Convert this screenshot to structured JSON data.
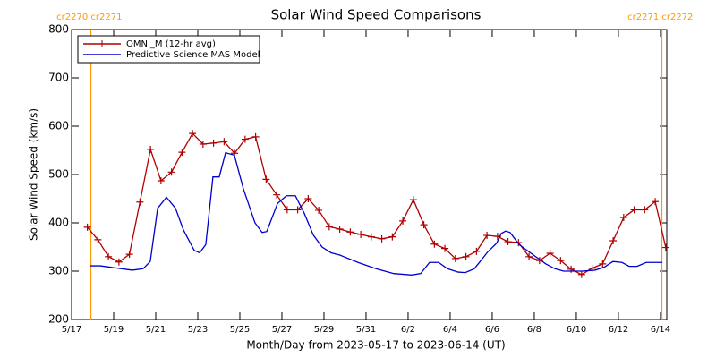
{
  "chart_data": {
    "type": "line",
    "title": "Solar Wind Speed Comparisons",
    "x_label": "Month/Day from 2023-05-17 to 2023-06-14 (UT)",
    "y_label": "Solar Wind Speed (km/s)",
    "xlim": [
      0,
      28.3
    ],
    "ylim": [
      200,
      800
    ],
    "xticks": [
      {
        "value": 0,
        "label": "5/17"
      },
      {
        "value": 2,
        "label": "5/19"
      },
      {
        "value": 4,
        "label": "5/21"
      },
      {
        "value": 6,
        "label": "5/23"
      },
      {
        "value": 8,
        "label": "5/25"
      },
      {
        "value": 10,
        "label": "5/27"
      },
      {
        "value": 12,
        "label": "5/29"
      },
      {
        "value": 14,
        "label": "5/31"
      },
      {
        "value": 16,
        "label": "6/2"
      },
      {
        "value": 18,
        "label": "6/4"
      },
      {
        "value": 20,
        "label": "6/6"
      },
      {
        "value": 22,
        "label": "6/8"
      },
      {
        "value": 24,
        "label": "6/10"
      },
      {
        "value": 26,
        "label": "6/12"
      },
      {
        "value": 28,
        "label": "6/14"
      }
    ],
    "yticks": [
      200,
      300,
      400,
      500,
      600,
      700,
      800
    ],
    "legend": "upper left",
    "annotations": [
      {
        "text": "cr2270 cr2271",
        "x": 0.9,
        "color": "#ff9900"
      },
      {
        "text": "cr2271 cr2272",
        "x": 28.05,
        "color": "#ff9900"
      }
    ],
    "series": [
      {
        "name": "OMNI_M (12-hr avg)",
        "color": "#b00000",
        "marker": "plus",
        "x": [
          0.75,
          1.25,
          1.75,
          2.25,
          2.75,
          3.25,
          3.75,
          4.25,
          4.75,
          5.25,
          5.75,
          6.25,
          6.75,
          7.25,
          7.75,
          8.25,
          8.75,
          9.25,
          9.75,
          10.25,
          10.75,
          11.25,
          11.75,
          12.25,
          12.75,
          13.25,
          13.75,
          14.25,
          14.75,
          15.25,
          15.75,
          16.25,
          16.75,
          17.25,
          17.75,
          18.25,
          18.75,
          19.25,
          19.75,
          20.25,
          20.75,
          21.25,
          21.75,
          22.25,
          22.75,
          23.25,
          23.75,
          24.25,
          24.75,
          25.25,
          25.75,
          26.25,
          26.75,
          27.25,
          27.75,
          28.25
        ],
        "values": [
          391,
          365,
          330,
          319,
          335,
          443,
          552,
          487,
          505,
          546,
          585,
          563,
          565,
          568,
          544,
          573,
          578,
          490,
          458,
          427,
          427,
          450,
          426,
          392,
          387,
          381,
          376,
          371,
          367,
          371,
          404,
          448,
          396,
          356,
          347,
          326,
          330,
          341,
          374,
          372,
          361,
          359,
          330,
          322,
          337,
          322,
          304,
          293,
          306,
          315,
          363,
          411,
          427,
          427,
          444,
          349
        ]
      },
      {
        "name": "Predictive Science MAS Model",
        "color": "#0000cc",
        "x": [
          0.85,
          1.36,
          1.87,
          2.38,
          2.89,
          3.4,
          3.74,
          4.09,
          4.51,
          4.94,
          5.32,
          5.83,
          6.09,
          6.38,
          6.72,
          7.02,
          7.32,
          7.74,
          8.17,
          8.72,
          9.06,
          9.28,
          9.79,
          10.21,
          10.64,
          11.06,
          11.49,
          11.91,
          12.34,
          12.77,
          13.62,
          14.47,
          15.32,
          16.17,
          16.6,
          17.02,
          17.45,
          17.87,
          18.38,
          18.72,
          19.15,
          19.79,
          20.21,
          20.43,
          20.64,
          20.85,
          21.28,
          21.91,
          22.55,
          22.98,
          23.4,
          23.83,
          24.26,
          24.89,
          25.32,
          25.74,
          26.17,
          26.51,
          26.89,
          27.32,
          28.09
        ],
        "values": [
          311,
          311,
          308,
          305,
          302,
          305,
          320,
          430,
          453,
          430,
          385,
          343,
          338,
          355,
          495,
          495,
          545,
          540,
          470,
          400,
          380,
          382,
          440,
          456,
          456,
          420,
          375,
          350,
          338,
          333,
          318,
          305,
          295,
          292,
          295,
          318,
          318,
          305,
          298,
          297,
          305,
          340,
          358,
          378,
          383,
          380,
          355,
          335,
          315,
          305,
          300,
          300,
          300,
          302,
          308,
          320,
          318,
          310,
          310,
          318,
          318
        ]
      }
    ]
  }
}
